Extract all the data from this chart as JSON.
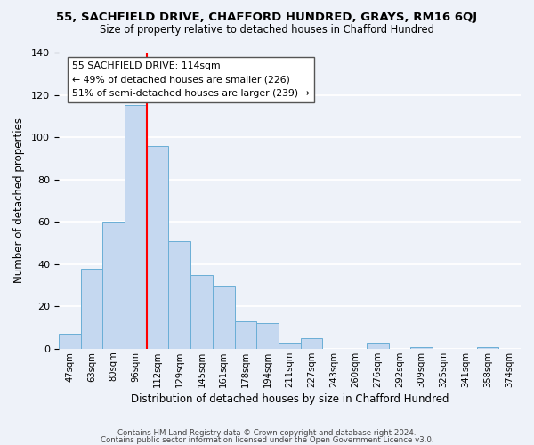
{
  "title1": "55, SACHFIELD DRIVE, CHAFFORD HUNDRED, GRAYS, RM16 6QJ",
  "title2": "Size of property relative to detached houses in Chafford Hundred",
  "xlabel": "Distribution of detached houses by size in Chafford Hundred",
  "ylabel": "Number of detached properties",
  "footer1": "Contains HM Land Registry data © Crown copyright and database right 2024.",
  "footer2": "Contains public sector information licensed under the Open Government Licence v3.0.",
  "bins": [
    "47sqm",
    "63sqm",
    "80sqm",
    "96sqm",
    "112sqm",
    "129sqm",
    "145sqm",
    "161sqm",
    "178sqm",
    "194sqm",
    "211sqm",
    "227sqm",
    "243sqm",
    "260sqm",
    "276sqm",
    "292sqm",
    "309sqm",
    "325sqm",
    "341sqm",
    "358sqm",
    "374sqm"
  ],
  "values": [
    7,
    38,
    60,
    115,
    96,
    51,
    35,
    30,
    13,
    12,
    3,
    5,
    0,
    0,
    3,
    0,
    1,
    0,
    0,
    1,
    0
  ],
  "bar_color": "#c5d8f0",
  "bar_edge_color": "#6aaed6",
  "vline_pos": 3.5,
  "vline_color": "red",
  "annotation_title": "55 SACHFIELD DRIVE: 114sqm",
  "annotation_line1": "← 49% of detached houses are smaller (226)",
  "annotation_line2": "51% of semi-detached houses are larger (239) →",
  "ylim": [
    0,
    140
  ],
  "yticks": [
    0,
    20,
    40,
    60,
    80,
    100,
    120,
    140
  ],
  "background_color": "#eef2f9"
}
